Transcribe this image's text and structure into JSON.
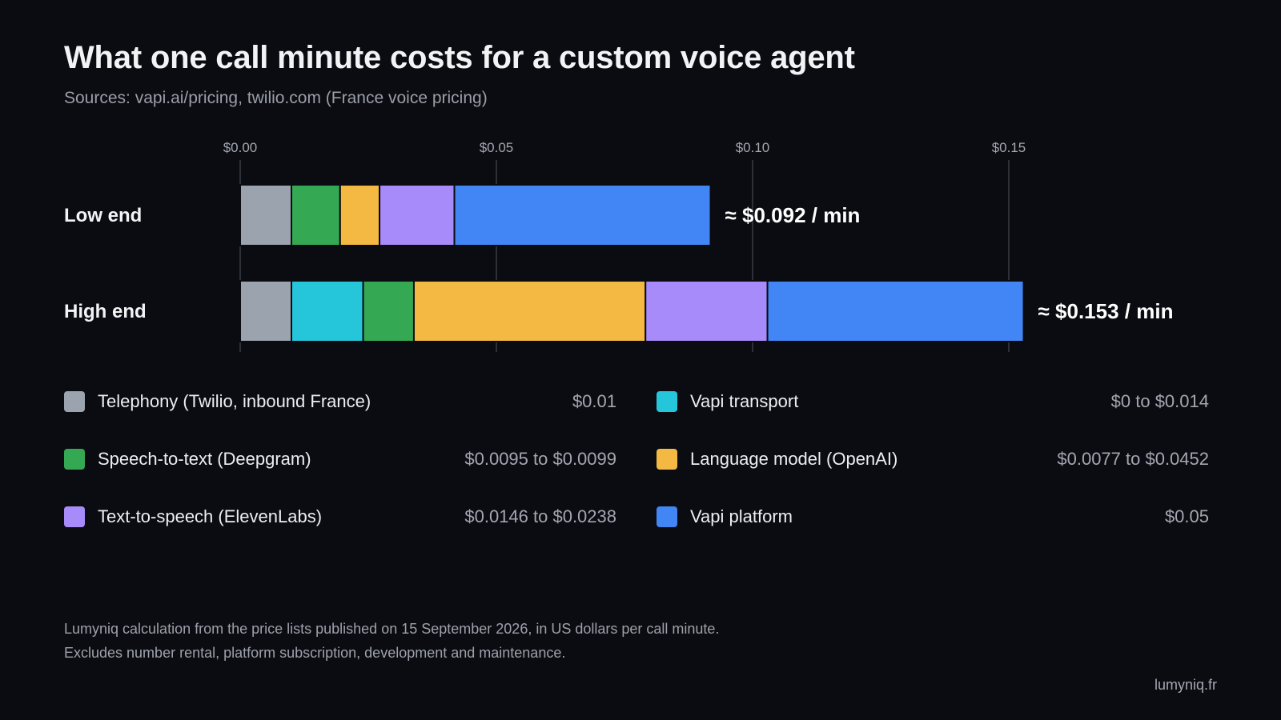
{
  "header": {
    "title": "What one call minute costs for a custom voice agent",
    "subtitle": "Sources: vapi.ai/pricing, twilio.com (France voice pricing)"
  },
  "chart_data": {
    "type": "bar",
    "orientation": "horizontal",
    "stacked": true,
    "xlim": [
      0,
      0.153
    ],
    "ticks": [
      0.0,
      0.05,
      0.1,
      0.15
    ],
    "tick_labels": [
      "$0.00",
      "$0.05",
      "$0.10",
      "$0.15"
    ],
    "grid": true,
    "categories": [
      "Low end",
      "High end"
    ],
    "totals": [
      "≈ $0.092 / min",
      "≈ $0.153 / min"
    ],
    "series": [
      {
        "name": "Telephony (Twilio, inbound France)",
        "color": "#9ba3ae",
        "values": [
          0.01,
          0.01
        ]
      },
      {
        "name": "Vapi transport",
        "color": "#26c6da",
        "values": [
          0.0,
          0.014
        ]
      },
      {
        "name": "Speech-to-text (Deepgram)",
        "color": "#34a853",
        "values": [
          0.0095,
          0.0099
        ]
      },
      {
        "name": "Language model (OpenAI)",
        "color": "#f4b942",
        "values": [
          0.0077,
          0.0452
        ]
      },
      {
        "name": "Text-to-speech (ElevenLabs)",
        "color": "#a78bfa",
        "values": [
          0.0146,
          0.0238
        ]
      },
      {
        "name": "Vapi platform",
        "color": "#4285f4",
        "values": [
          0.05,
          0.05
        ]
      }
    ]
  },
  "legend": [
    {
      "label": "Telephony (Twilio, inbound France)",
      "value": "$0.01",
      "color": "#9ba3ae"
    },
    {
      "label": "Vapi transport",
      "value": "$0 to $0.014",
      "color": "#26c6da"
    },
    {
      "label": "Speech-to-text (Deepgram)",
      "value": "$0.0095 to $0.0099",
      "color": "#34a853"
    },
    {
      "label": "Language model (OpenAI)",
      "value": "$0.0077 to $0.0452",
      "color": "#f4b942"
    },
    {
      "label": "Text-to-speech (ElevenLabs)",
      "value": "$0.0146 to $0.0238",
      "color": "#a78bfa"
    },
    {
      "label": "Vapi platform",
      "value": "$0.05",
      "color": "#4285f4"
    }
  ],
  "footnote": {
    "line1": "Lumyniq calculation from the price lists published on 15 September 2026, in US dollars per call minute.",
    "line2": "Excludes number rental, platform subscription, development and maintenance."
  },
  "brand": "lumyniq.fr"
}
